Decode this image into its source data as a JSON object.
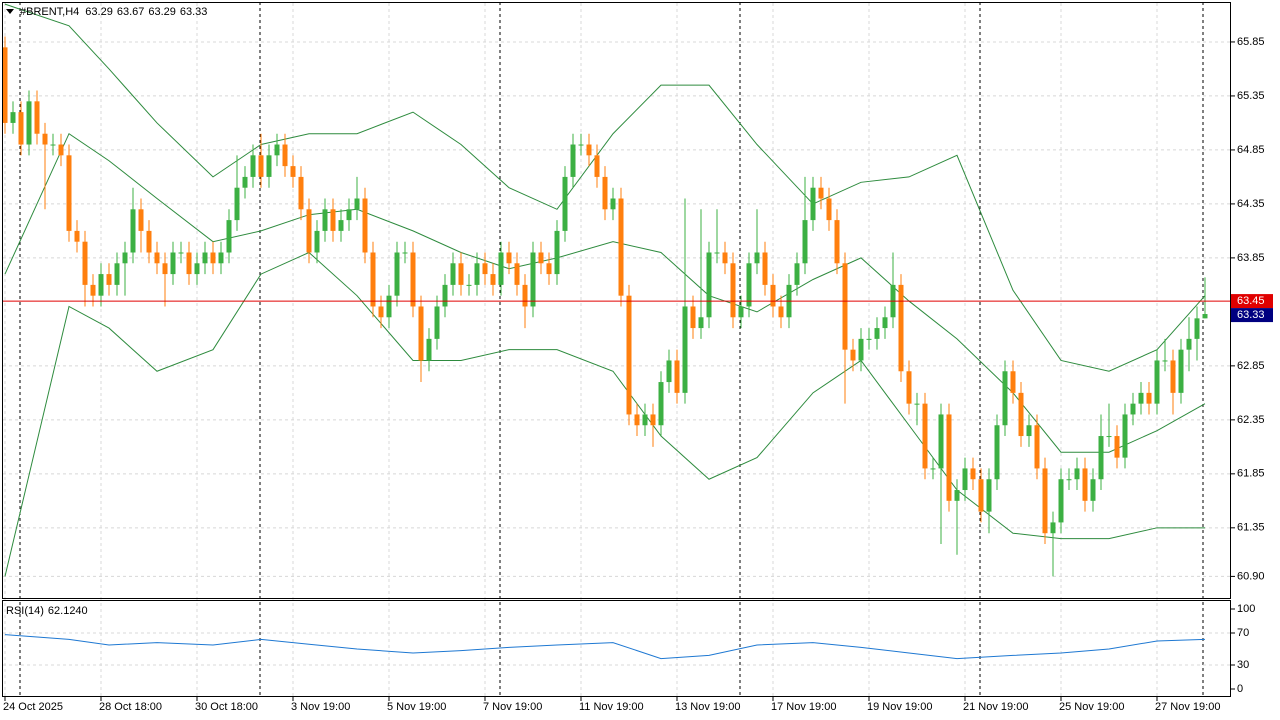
{
  "chart_data": {
    "type": "candlestick",
    "symbol": "#BRENT,H4",
    "bull_color": "#3cb043",
    "bear_color": "#ff7f0e",
    "grid": true,
    "ylim": [
      60.7,
      66.22
    ],
    "yticks": [
      {
        "value": 65.85,
        "label": "65.85"
      },
      {
        "value": 65.35,
        "label": "65.35"
      },
      {
        "value": 64.85,
        "label": "64.85"
      },
      {
        "value": 64.35,
        "label": "64.35"
      },
      {
        "value": 63.85,
        "label": "63.85"
      },
      {
        "value": 62.85,
        "label": "62.85"
      },
      {
        "value": 62.35,
        "label": "62.35"
      },
      {
        "value": 61.85,
        "label": "61.85"
      },
      {
        "value": 61.35,
        "label": "61.35"
      },
      {
        "value": 60.9,
        "label": "60.90"
      }
    ],
    "xticks": [
      {
        "value": 0,
        "label": "24 Oct 2025"
      },
      {
        "value": 12,
        "label": "28 Oct 18:00"
      },
      {
        "value": 24,
        "label": "30 Oct 18:00"
      },
      {
        "value": 36,
        "label": "3 Nov 19:00"
      },
      {
        "value": 48,
        "label": "5 Nov 19:00"
      },
      {
        "value": 60,
        "label": "7 Nov 19:00"
      },
      {
        "value": 72,
        "label": "11 Nov 19:00"
      },
      {
        "value": 84,
        "label": "13 Nov 19:00"
      },
      {
        "value": 96,
        "label": "17 Nov 19:00"
      },
      {
        "value": 108,
        "label": "19 Nov 19:00"
      },
      {
        "value": 120,
        "label": "21 Nov 19:00"
      },
      {
        "value": 132,
        "label": "25 Nov 19:00"
      },
      {
        "value": 144,
        "label": "27 Nov 19:00"
      }
    ],
    "candles": [
      [
        65.8,
        65.9,
        65.0,
        65.1
      ],
      [
        65.1,
        65.3,
        65.0,
        65.2
      ],
      [
        65.2,
        65.3,
        64.8,
        64.9
      ],
      [
        64.9,
        65.4,
        64.8,
        65.3
      ],
      [
        65.3,
        65.4,
        64.9,
        65.0
      ],
      [
        65.0,
        65.1,
        64.3,
        64.9
      ],
      [
        64.9,
        65.0,
        64.8,
        64.9
      ],
      [
        64.9,
        65.0,
        64.7,
        64.8
      ],
      [
        64.8,
        64.9,
        64.0,
        64.1
      ],
      [
        64.1,
        64.2,
        63.9,
        64.0
      ],
      [
        64.0,
        64.1,
        63.4,
        63.6
      ],
      [
        63.6,
        63.7,
        63.4,
        63.5
      ],
      [
        63.5,
        63.8,
        63.4,
        63.7
      ],
      [
        63.7,
        63.8,
        63.5,
        63.6
      ],
      [
        63.6,
        63.9,
        63.5,
        63.8
      ],
      [
        63.8,
        64.0,
        63.5,
        63.9
      ],
      [
        63.9,
        64.5,
        63.8,
        64.3
      ],
      [
        64.3,
        64.4,
        63.9,
        64.1
      ],
      [
        64.1,
        64.2,
        63.8,
        63.9
      ],
      [
        63.9,
        64.0,
        63.7,
        63.8
      ],
      [
        63.8,
        63.9,
        63.4,
        63.7
      ],
      [
        63.7,
        64.0,
        63.6,
        63.9
      ],
      [
        63.9,
        64.0,
        63.8,
        63.9
      ],
      [
        63.9,
        64.0,
        63.6,
        63.7
      ],
      [
        63.7,
        63.9,
        63.6,
        63.8
      ],
      [
        63.8,
        64.0,
        63.7,
        63.9
      ],
      [
        63.9,
        64.0,
        63.7,
        63.8
      ],
      [
        63.8,
        64.0,
        63.7,
        63.9
      ],
      [
        63.9,
        64.3,
        63.8,
        64.2
      ],
      [
        64.2,
        64.8,
        64.1,
        64.5
      ],
      [
        64.5,
        64.7,
        64.4,
        64.6
      ],
      [
        64.6,
        64.9,
        64.5,
        64.8
      ],
      [
        64.8,
        65.0,
        64.5,
        64.6
      ],
      [
        64.6,
        64.9,
        64.5,
        64.8
      ],
      [
        64.8,
        65.0,
        64.7,
        64.9
      ],
      [
        64.9,
        65.0,
        64.6,
        64.7
      ],
      [
        64.7,
        64.8,
        64.5,
        64.6
      ],
      [
        64.6,
        64.7,
        64.2,
        64.3
      ],
      [
        64.3,
        64.4,
        63.8,
        63.9
      ],
      [
        63.9,
        64.2,
        63.8,
        64.1
      ],
      [
        64.1,
        64.4,
        64.0,
        64.3
      ],
      [
        64.3,
        64.4,
        64.0,
        64.1
      ],
      [
        64.1,
        64.3,
        64.0,
        64.2
      ],
      [
        64.2,
        64.4,
        64.1,
        64.3
      ],
      [
        64.3,
        64.6,
        64.2,
        64.4
      ],
      [
        64.4,
        64.5,
        63.8,
        63.9
      ],
      [
        63.9,
        64.0,
        63.3,
        63.4
      ],
      [
        63.4,
        63.5,
        63.2,
        63.3
      ],
      [
        63.3,
        63.6,
        63.2,
        63.5
      ],
      [
        63.5,
        64.0,
        63.4,
        63.9
      ],
      [
        63.9,
        64.0,
        63.8,
        63.9
      ],
      [
        63.9,
        64.0,
        63.3,
        63.4
      ],
      [
        63.4,
        63.5,
        62.7,
        62.9
      ],
      [
        62.9,
        63.2,
        62.8,
        63.1
      ],
      [
        63.1,
        63.5,
        63.0,
        63.4
      ],
      [
        63.4,
        63.7,
        63.3,
        63.6
      ],
      [
        63.6,
        63.9,
        63.5,
        63.8
      ],
      [
        63.8,
        63.9,
        63.5,
        63.6
      ],
      [
        63.6,
        63.7,
        63.5,
        63.6
      ],
      [
        63.6,
        63.9,
        63.5,
        63.8
      ],
      [
        63.8,
        63.9,
        63.6,
        63.7
      ],
      [
        63.7,
        63.8,
        63.5,
        63.6
      ],
      [
        63.6,
        64.0,
        63.5,
        63.9
      ],
      [
        63.9,
        64.0,
        63.7,
        63.8
      ],
      [
        63.8,
        63.9,
        63.5,
        63.6
      ],
      [
        63.6,
        63.7,
        63.2,
        63.4
      ],
      [
        63.4,
        64.0,
        63.3,
        63.9
      ],
      [
        63.9,
        64.0,
        63.7,
        63.8
      ],
      [
        63.8,
        63.9,
        63.6,
        63.7
      ],
      [
        63.7,
        64.2,
        63.6,
        64.1
      ],
      [
        64.1,
        64.7,
        64.0,
        64.6
      ],
      [
        64.6,
        65.0,
        64.5,
        64.9
      ],
      [
        64.9,
        65.0,
        64.8,
        64.9
      ],
      [
        64.9,
        65.0,
        64.7,
        64.8
      ],
      [
        64.8,
        64.9,
        64.5,
        64.6
      ],
      [
        64.6,
        64.7,
        64.2,
        64.3
      ],
      [
        64.3,
        64.5,
        64.2,
        64.4
      ],
      [
        64.4,
        64.5,
        63.4,
        63.5
      ],
      [
        63.5,
        63.6,
        62.3,
        62.4
      ],
      [
        62.4,
        62.5,
        62.2,
        62.3
      ],
      [
        62.3,
        62.5,
        62.2,
        62.4
      ],
      [
        62.4,
        62.5,
        62.1,
        62.3
      ],
      [
        62.3,
        62.8,
        62.2,
        62.7
      ],
      [
        62.7,
        63.0,
        62.6,
        62.9
      ],
      [
        62.9,
        63.0,
        62.5,
        62.6
      ],
      [
        62.6,
        64.4,
        62.5,
        63.4
      ],
      [
        63.4,
        63.5,
        63.1,
        63.2
      ],
      [
        63.2,
        64.3,
        63.1,
        63.3
      ],
      [
        63.3,
        64.0,
        63.2,
        63.9
      ],
      [
        63.9,
        64.3,
        63.8,
        63.9
      ],
      [
        63.9,
        64.0,
        63.7,
        63.8
      ],
      [
        63.8,
        63.9,
        63.2,
        63.3
      ],
      [
        63.3,
        63.5,
        63.2,
        63.4
      ],
      [
        63.4,
        63.9,
        63.3,
        63.8
      ],
      [
        63.8,
        64.3,
        63.7,
        63.9
      ],
      [
        63.9,
        64.0,
        63.5,
        63.6
      ],
      [
        63.6,
        63.7,
        63.3,
        63.4
      ],
      [
        63.4,
        63.5,
        63.2,
        63.3
      ],
      [
        63.3,
        63.7,
        63.2,
        63.6
      ],
      [
        63.6,
        63.9,
        63.5,
        63.8
      ],
      [
        63.8,
        64.6,
        63.7,
        64.2
      ],
      [
        64.2,
        64.6,
        64.1,
        64.5
      ],
      [
        64.5,
        64.6,
        64.3,
        64.4
      ],
      [
        64.4,
        64.5,
        64.1,
        64.2
      ],
      [
        64.2,
        64.3,
        63.7,
        63.8
      ],
      [
        63.8,
        63.9,
        62.5,
        63.0
      ],
      [
        63.0,
        63.1,
        62.8,
        62.9
      ],
      [
        62.9,
        63.2,
        62.8,
        63.1
      ],
      [
        63.1,
        63.2,
        63.0,
        63.1
      ],
      [
        63.1,
        63.3,
        63.0,
        63.2
      ],
      [
        63.2,
        63.4,
        63.1,
        63.3
      ],
      [
        63.3,
        63.9,
        63.2,
        63.6
      ],
      [
        63.6,
        63.7,
        62.7,
        62.8
      ],
      [
        62.8,
        62.9,
        62.4,
        62.5
      ],
      [
        62.5,
        62.6,
        62.3,
        62.5
      ],
      [
        62.5,
        62.6,
        61.8,
        61.9
      ],
      [
        61.9,
        62.0,
        61.8,
        61.9
      ],
      [
        61.9,
        62.5,
        61.2,
        62.4
      ],
      [
        62.4,
        62.5,
        61.5,
        61.6
      ],
      [
        61.6,
        61.8,
        61.1,
        61.7
      ],
      [
        61.7,
        62.0,
        61.6,
        61.9
      ],
      [
        61.9,
        62.0,
        61.7,
        61.8
      ],
      [
        61.8,
        61.9,
        61.4,
        61.5
      ],
      [
        61.5,
        61.9,
        61.3,
        61.8
      ],
      [
        61.8,
        62.4,
        61.7,
        62.3
      ],
      [
        62.3,
        62.9,
        62.2,
        62.8
      ],
      [
        62.8,
        62.9,
        62.5,
        62.6
      ],
      [
        62.6,
        62.7,
        62.1,
        62.2
      ],
      [
        62.2,
        62.4,
        62.1,
        62.3
      ],
      [
        62.3,
        62.4,
        61.8,
        61.9
      ],
      [
        61.9,
        62.0,
        61.2,
        61.3
      ],
      [
        61.3,
        61.5,
        60.9,
        61.4
      ],
      [
        61.4,
        61.9,
        61.3,
        61.8
      ],
      [
        61.8,
        61.9,
        61.7,
        61.8
      ],
      [
        61.8,
        62.0,
        61.7,
        61.9
      ],
      [
        61.9,
        62.0,
        61.5,
        61.6
      ],
      [
        61.6,
        61.9,
        61.5,
        61.8
      ],
      [
        61.8,
        62.4,
        61.7,
        62.2
      ],
      [
        62.2,
        62.5,
        62.1,
        62.2
      ],
      [
        62.2,
        62.3,
        61.9,
        62.0
      ],
      [
        62.0,
        62.5,
        61.9,
        62.4
      ],
      [
        62.4,
        62.6,
        62.3,
        62.5
      ],
      [
        62.5,
        62.7,
        62.4,
        62.6
      ],
      [
        62.6,
        62.7,
        62.4,
        62.5
      ],
      [
        62.5,
        63.0,
        62.4,
        62.9
      ],
      [
        62.9,
        63.1,
        62.8,
        62.9
      ],
      [
        62.9,
        63.0,
        62.4,
        62.6
      ],
      [
        62.6,
        63.1,
        62.5,
        63.0
      ],
      [
        63.0,
        63.3,
        62.8,
        63.1
      ],
      [
        63.1,
        63.4,
        62.9,
        63.29
      ],
      [
        63.29,
        63.67,
        63.29,
        63.33
      ]
    ],
    "bands": {
      "color": "#2e8b3e",
      "x": [
        0,
        8,
        13,
        19,
        26,
        32,
        38,
        44,
        51,
        57,
        63,
        69,
        76,
        82,
        88,
        94,
        101,
        107,
        113,
        119,
        126,
        132,
        138,
        144,
        150
      ],
      "upper": [
        66.2,
        66.0,
        65.6,
        65.1,
        64.6,
        64.9,
        65.0,
        65.0,
        65.2,
        64.9,
        64.5,
        64.3,
        65.0,
        65.45,
        65.45,
        64.9,
        64.35,
        64.55,
        64.6,
        64.8,
        63.55,
        62.9,
        62.8,
        63.0,
        63.5
      ],
      "middle": [
        63.7,
        65.0,
        64.75,
        64.4,
        64.0,
        64.1,
        64.25,
        64.3,
        64.1,
        63.9,
        63.75,
        63.85,
        64.0,
        63.9,
        63.5,
        63.35,
        63.65,
        63.85,
        63.45,
        63.1,
        62.6,
        62.05,
        62.05,
        62.25,
        62.5
      ],
      "lower": [
        60.9,
        63.4,
        63.2,
        62.8,
        63.0,
        63.7,
        63.9,
        63.5,
        62.9,
        62.9,
        63.0,
        63.0,
        62.8,
        62.2,
        61.8,
        62.0,
        62.6,
        62.9,
        62.3,
        61.7,
        61.3,
        61.25,
        61.25,
        61.35,
        61.35
      ]
    },
    "ask": 63.45,
    "ask_color": "#e00000",
    "last_color": "#000080",
    "rsi": {
      "title": "RSI(14)",
      "current": {
        "value": 62.124,
        "label": "62.1240"
      },
      "color": "#1e78d2",
      "ylim": [
        0,
        100
      ],
      "yticks": [
        100,
        70,
        30,
        0
      ],
      "levels": [
        70,
        30
      ],
      "x": [
        0,
        8,
        13,
        19,
        26,
        32,
        38,
        44,
        51,
        57,
        63,
        69,
        76,
        82,
        88,
        94,
        101,
        107,
        113,
        119,
        126,
        132,
        138,
        144,
        150
      ],
      "values": [
        68,
        62,
        55,
        58,
        55,
        62,
        56,
        50,
        45,
        48,
        52,
        55,
        58,
        38,
        42,
        55,
        58,
        52,
        45,
        38,
        42,
        45,
        50,
        60,
        62
      ]
    }
  }
}
